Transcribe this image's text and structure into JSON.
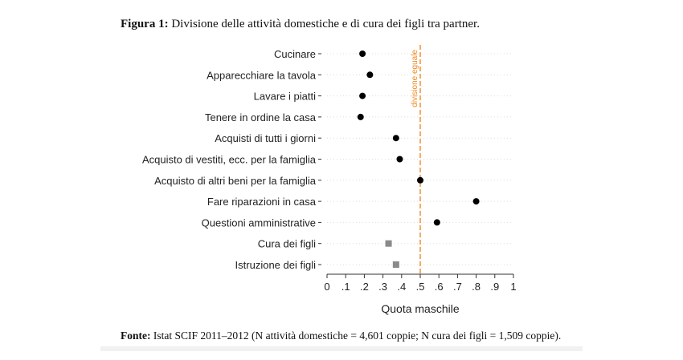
{
  "figure": {
    "label": "Figura 1:",
    "title": "Divisione delle attività domestiche e di cura dei figli tra partner."
  },
  "source": {
    "label": "Fonte:",
    "text": "Istat SCIF 2011–2012 (N attività domestiche = 4,601 coppie; N cura dei figli = 1,509 coppie)."
  },
  "chart_data": {
    "type": "scatter",
    "xlabel": "Quota maschile",
    "xlim": [
      0,
      1
    ],
    "x_ticks": [
      0,
      0.1,
      0.2,
      0.3,
      0.4,
      0.5,
      0.6,
      0.7,
      0.8,
      0.9,
      1
    ],
    "x_tick_labels": [
      "0",
      ".1",
      ".2",
      ".3",
      ".4",
      ".5",
      ".6",
      ".7",
      ".8",
      ".9",
      "1"
    ],
    "grid": "horizontal dotted",
    "reference_line": {
      "x": 0.5,
      "label": "divisione eguale",
      "color": "#f08a24"
    },
    "categories": [
      "Cucinare",
      "Apparecchiare la tavola",
      "Lavare i piatti",
      "Tenere in ordine la casa",
      "Acquisti di tutti i giorni",
      "Acquisto di vestiti, ecc. per la famiglia",
      "Acquisto di altri beni per la famiglia",
      "Fare riparazioni in casa",
      "Questioni amministrative",
      "Cura dei figli",
      "Istruzione dei figli"
    ],
    "values": [
      0.19,
      0.23,
      0.19,
      0.18,
      0.37,
      0.39,
      0.5,
      0.8,
      0.59,
      0.33,
      0.37
    ],
    "markers": [
      "circle",
      "circle",
      "circle",
      "circle",
      "circle",
      "circle",
      "circle",
      "circle",
      "circle",
      "square",
      "square"
    ],
    "colors": {
      "circle": "#000000",
      "square": "#8a8a8a"
    }
  }
}
